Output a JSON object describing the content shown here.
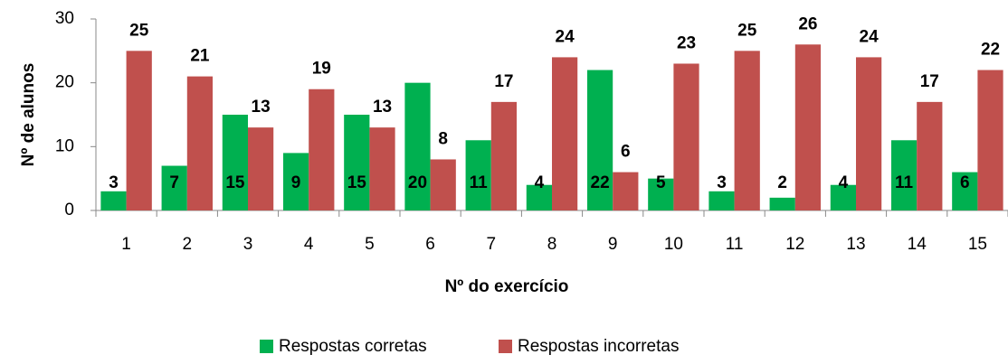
{
  "chart_data": {
    "type": "bar",
    "categories": [
      "1",
      "2",
      "3",
      "4",
      "5",
      "6",
      "7",
      "8",
      "9",
      "10",
      "11",
      "12",
      "13",
      "14",
      "15"
    ],
    "series": [
      {
        "name": "Respostas corretas",
        "color": "#00b050",
        "values": [
          3,
          7,
          15,
          9,
          15,
          20,
          11,
          4,
          22,
          5,
          3,
          2,
          4,
          11,
          6
        ]
      },
      {
        "name": "Respostas incorretas",
        "color": "#c0504d",
        "values": [
          25,
          21,
          13,
          19,
          13,
          8,
          17,
          24,
          6,
          23,
          25,
          26,
          24,
          17,
          22
        ]
      }
    ],
    "ylim": [
      0,
      30
    ],
    "yticks": [
      0,
      10,
      20,
      30
    ],
    "xlabel": "Nº do exercício",
    "ylabel": "Nº de alunos",
    "legend": "bottom",
    "grid": false
  }
}
